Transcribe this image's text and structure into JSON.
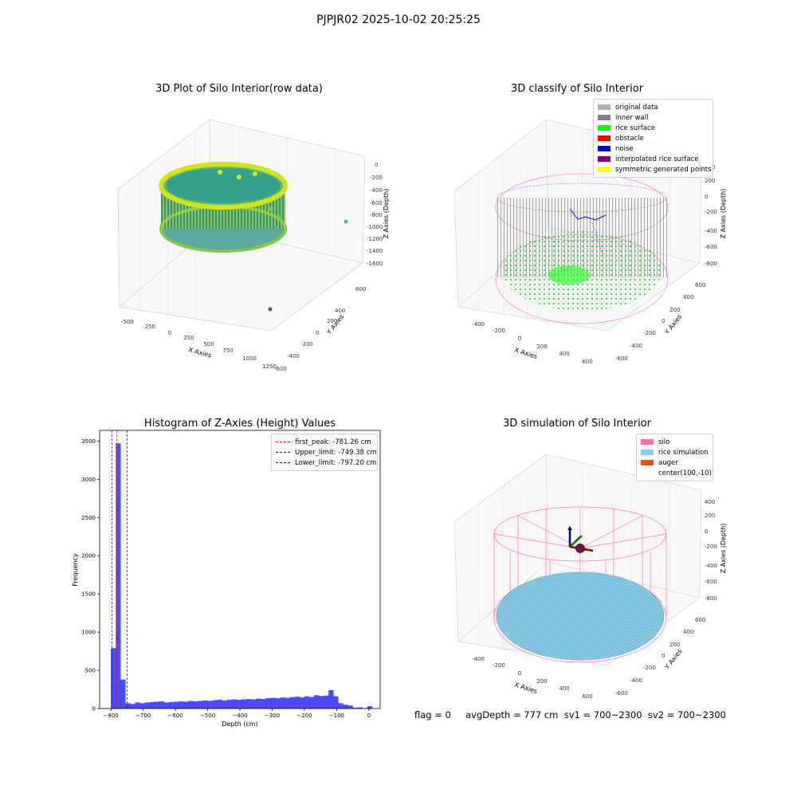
{
  "suptitle": "PJPJR02 2025-10-02 20:25:25",
  "chart_data": [
    {
      "type": "scatter",
      "title": "3D Plot of Silo Interior(row data)",
      "xlabel": "X Axies",
      "ylabel": "Y Axies",
      "zlabel": "Z Axies (Depth)",
      "x_ticks": [
        "-500",
        "-250",
        "0",
        "250",
        "500",
        "750",
        "1000",
        "1250"
      ],
      "y_ticks": [
        "600",
        "400",
        "200",
        "0",
        "-200",
        "-400",
        "-600"
      ],
      "z_ticks": [
        "0",
        "-200",
        "-400",
        "-600",
        "-800",
        "-1000",
        "-1200",
        "-1400",
        "-1600"
      ],
      "colormap": "viridis"
    },
    {
      "type": "scatter",
      "title": "3D classify of Silo Interior",
      "xlabel": "X Axies",
      "ylabel": "Y Axies",
      "zlabel": "Z Axies (Depth)",
      "x_ticks": [
        "-400",
        "-200",
        "0",
        "200",
        "400",
        "600"
      ],
      "y_ticks": [
        "600",
        "400",
        "200",
        "0",
        "-200",
        "-400",
        "-600"
      ],
      "z_ticks": [
        "400",
        "200",
        "0",
        "-200",
        "-400",
        "-600",
        "-800"
      ],
      "legend": [
        {
          "label": "original data",
          "color": "#b0b0b0"
        },
        {
          "label": "inner wall",
          "color": "#808080"
        },
        {
          "label": "rice surface",
          "color": "#00ff00"
        },
        {
          "label": "obstacle",
          "color": "#ff0000"
        },
        {
          "label": "noise",
          "color": "#0000ff"
        },
        {
          "label": "interpolated rice surface",
          "color": "#800080"
        },
        {
          "label": "symmetric generated points",
          "color": "#ffff00"
        }
      ]
    },
    {
      "type": "bar",
      "title": "Histogram of Z-Axies (Height) Values",
      "xlabel": "Depth (cm)",
      "ylabel": "Frequency",
      "xlim": [
        -835,
        35
      ],
      "ylim": [
        0,
        3640
      ],
      "x_ticks": [
        -800,
        -700,
        -600,
        -500,
        -400,
        -300,
        -200,
        -100,
        0
      ],
      "y_ticks": [
        0,
        500,
        1000,
        1500,
        2000,
        2500,
        3000,
        3500
      ],
      "bar_color": "#0000ff",
      "bin_width": 15.5,
      "bins": [
        {
          "x": -800,
          "v": 790
        },
        {
          "x": -785,
          "v": 3470
        },
        {
          "x": -770,
          "v": 380
        },
        {
          "x": -755,
          "v": 70
        },
        {
          "x": -740,
          "v": 60
        },
        {
          "x": -725,
          "v": 80
        },
        {
          "x": -710,
          "v": 70
        },
        {
          "x": -695,
          "v": 80
        },
        {
          "x": -680,
          "v": 85
        },
        {
          "x": -665,
          "v": 90
        },
        {
          "x": -650,
          "v": 95
        },
        {
          "x": -635,
          "v": 80
        },
        {
          "x": -620,
          "v": 85
        },
        {
          "x": -605,
          "v": 90
        },
        {
          "x": -590,
          "v": 95
        },
        {
          "x": -575,
          "v": 90
        },
        {
          "x": -560,
          "v": 100
        },
        {
          "x": -545,
          "v": 95
        },
        {
          "x": -530,
          "v": 100
        },
        {
          "x": -515,
          "v": 105
        },
        {
          "x": -500,
          "v": 100
        },
        {
          "x": -485,
          "v": 110
        },
        {
          "x": -470,
          "v": 115
        },
        {
          "x": -455,
          "v": 105
        },
        {
          "x": -440,
          "v": 115
        },
        {
          "x": -425,
          "v": 120
        },
        {
          "x": -410,
          "v": 115
        },
        {
          "x": -395,
          "v": 120
        },
        {
          "x": -380,
          "v": 125
        },
        {
          "x": -365,
          "v": 120
        },
        {
          "x": -350,
          "v": 130
        },
        {
          "x": -335,
          "v": 125
        },
        {
          "x": -320,
          "v": 135
        },
        {
          "x": -305,
          "v": 140
        },
        {
          "x": -290,
          "v": 135
        },
        {
          "x": -275,
          "v": 145
        },
        {
          "x": -260,
          "v": 140
        },
        {
          "x": -245,
          "v": 150
        },
        {
          "x": -230,
          "v": 155
        },
        {
          "x": -215,
          "v": 145
        },
        {
          "x": -200,
          "v": 160
        },
        {
          "x": -185,
          "v": 150
        },
        {
          "x": -170,
          "v": 175
        },
        {
          "x": -155,
          "v": 165
        },
        {
          "x": -140,
          "v": 170
        },
        {
          "x": -125,
          "v": 240
        },
        {
          "x": -110,
          "v": 160
        },
        {
          "x": -95,
          "v": 70
        },
        {
          "x": -80,
          "v": 50
        },
        {
          "x": -65,
          "v": 40
        },
        {
          "x": -50,
          "v": 10
        },
        {
          "x": -35,
          "v": 15
        },
        {
          "x": -20,
          "v": 5
        },
        {
          "x": -5,
          "v": 30
        }
      ],
      "lines": [
        {
          "label": "first_peak: -781.26 cm",
          "value": -781.26,
          "color": "#ff0000"
        },
        {
          "label": "Upper_limit: -749.38 cm",
          "value": -749.38,
          "color": "#0000ff"
        },
        {
          "label": "Lower_limit: -797.20 cm",
          "value": -797.2,
          "color": "#0000ff"
        }
      ]
    },
    {
      "type": "surface",
      "title": "3D simulation of Silo Interior",
      "xlabel": "X Axies",
      "ylabel": "Y Axies",
      "zlabel": "Z Axies (Depth)",
      "x_ticks": [
        "-400",
        "-200",
        "0",
        "200",
        "400",
        "600"
      ],
      "y_ticks": [
        "600",
        "400",
        "200",
        "0",
        "-200",
        "-400",
        "-600"
      ],
      "z_ticks": [
        "400",
        "200",
        "0",
        "-200",
        "-400",
        "-600",
        "-800"
      ],
      "legend": [
        {
          "label": "silo",
          "color": "#ff69b4"
        },
        {
          "label": "rice simulation",
          "color": "#87ceeb"
        },
        {
          "label": "auger",
          "color": "#ff4500"
        },
        {
          "label": "center(100,-10)",
          "color": ""
        }
      ]
    }
  ],
  "status_line": "flag = 0     avgDepth = 777 cm  sv1 = 700~2300  sv2 = 700~2300"
}
